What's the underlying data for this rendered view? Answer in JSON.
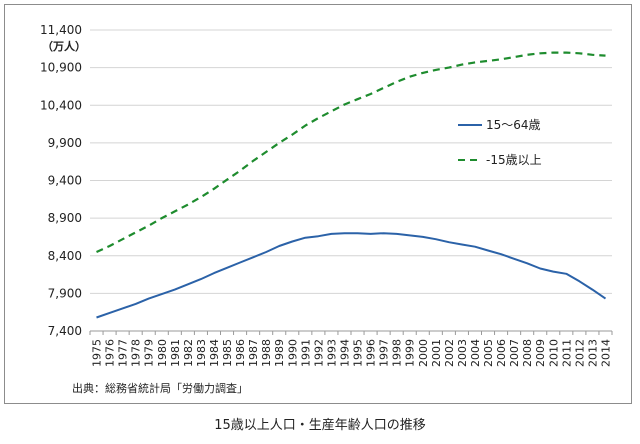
{
  "chart_data": {
    "type": "line",
    "title": "",
    "xlabel": "",
    "ylabel": "（万人）",
    "ylim": [
      7400,
      11400
    ],
    "yticks": [
      7400,
      7900,
      8400,
      8900,
      9400,
      9900,
      10400,
      10900,
      11400
    ],
    "ytick_labels": [
      "7,400",
      "7,900",
      "8,400",
      "8,900",
      "9,400",
      "9,900",
      "10,400",
      "10,900",
      "11,400"
    ],
    "x": [
      "1975",
      "1976",
      "1977",
      "1978",
      "1979",
      "1980",
      "1981",
      "1982",
      "1983",
      "1984",
      "1985",
      "1986",
      "1987",
      "1988",
      "1989",
      "1990",
      "1991",
      "1992",
      "1993",
      "1994",
      "1995",
      "1996",
      "1997",
      "1998",
      "1999",
      "2000",
      "2001",
      "2002",
      "2003",
      "2004",
      "2005",
      "2006",
      "2007",
      "2008",
      "2009",
      "2010",
      "2011",
      "2012",
      "2013",
      "2014"
    ],
    "grid": true,
    "legend_position": "right",
    "series": [
      {
        "name": "15～64歳",
        "color": "#2b62a8",
        "style": "solid",
        "values": [
          7580,
          7640,
          7700,
          7760,
          7830,
          7890,
          7950,
          8020,
          8090,
          8170,
          8240,
          8310,
          8380,
          8450,
          8530,
          8590,
          8640,
          8660,
          8690,
          8700,
          8700,
          8690,
          8700,
          8690,
          8670,
          8650,
          8620,
          8580,
          8550,
          8520,
          8470,
          8420,
          8360,
          8300,
          8230,
          8190,
          8160,
          8060,
          7950,
          7830
        ]
      },
      {
        "name": "-15歳以上",
        "color": "#1e8c2e",
        "style": "dashed",
        "values": [
          8450,
          8530,
          8620,
          8710,
          8800,
          8900,
          8990,
          9080,
          9180,
          9290,
          9410,
          9530,
          9660,
          9780,
          9900,
          10010,
          10130,
          10230,
          10320,
          10410,
          10480,
          10550,
          10630,
          10710,
          10780,
          10830,
          10870,
          10900,
          10940,
          10970,
          10990,
          11010,
          11040,
          11070,
          11090,
          11100,
          11100,
          11090,
          11070,
          11060
        ]
      }
    ]
  },
  "source_note": "出典：総務省統計局「労働力調査」",
  "caption": "15歳以上人口・生産年齢人口の推移"
}
